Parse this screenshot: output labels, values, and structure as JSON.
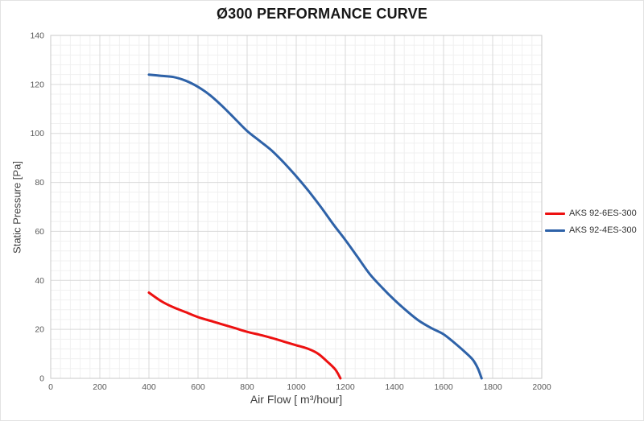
{
  "title": "Ø300 PERFORMANCE CURVE",
  "colors": {
    "red_series": "#ed1111",
    "blue_series": "#2e62a8",
    "grid_major": "#d9d9d9",
    "grid_minor": "#f0f0f0",
    "plot_border": "#c9c9c9",
    "tick_text": "#595959",
    "axis_title_text": "#404040",
    "title_text": "#171717"
  },
  "chart_data": {
    "type": "line",
    "title": "Ø300 PERFORMANCE CURVE",
    "xlabel": "Air Flow [ m³/hour]",
    "ylabel": "Static Pressure [Pa]",
    "xlim": [
      0,
      2000
    ],
    "ylim": [
      0,
      140
    ],
    "x_ticks": [
      0,
      200,
      400,
      600,
      800,
      1000,
      1200,
      1400,
      1600,
      1800,
      2000
    ],
    "y_ticks": [
      0,
      20,
      40,
      60,
      80,
      100,
      120,
      140
    ],
    "x_major_step": 200,
    "x_minor_step": 40,
    "y_major_step": 20,
    "y_minor_step": 4,
    "grid": true,
    "legend_position": "right",
    "series": [
      {
        "name": "AKS 92-6ES-300",
        "color": "#ed1111",
        "points": [
          [
            400,
            35
          ],
          [
            450,
            31.5
          ],
          [
            500,
            29
          ],
          [
            550,
            27
          ],
          [
            600,
            25
          ],
          [
            650,
            23.5
          ],
          [
            700,
            22
          ],
          [
            750,
            20.5
          ],
          [
            800,
            19
          ],
          [
            850,
            17.8
          ],
          [
            900,
            16.5
          ],
          [
            950,
            15
          ],
          [
            1000,
            13.5
          ],
          [
            1050,
            12
          ],
          [
            1090,
            10
          ],
          [
            1130,
            6.5
          ],
          [
            1160,
            3.5
          ],
          [
            1180,
            0
          ]
        ]
      },
      {
        "name": "AKS 92-4ES-300",
        "color": "#2e62a8",
        "points": [
          [
            400,
            124
          ],
          [
            450,
            123.5
          ],
          [
            500,
            123
          ],
          [
            550,
            121.5
          ],
          [
            600,
            119
          ],
          [
            650,
            115.5
          ],
          [
            700,
            111
          ],
          [
            750,
            106
          ],
          [
            800,
            101
          ],
          [
            850,
            97
          ],
          [
            900,
            93
          ],
          [
            950,
            88
          ],
          [
            1000,
            82.5
          ],
          [
            1050,
            76.5
          ],
          [
            1100,
            70
          ],
          [
            1150,
            63
          ],
          [
            1200,
            56.5
          ],
          [
            1250,
            49.5
          ],
          [
            1300,
            42.5
          ],
          [
            1350,
            37
          ],
          [
            1400,
            32
          ],
          [
            1450,
            27.5
          ],
          [
            1500,
            23.5
          ],
          [
            1550,
            20.5
          ],
          [
            1600,
            18
          ],
          [
            1650,
            14
          ],
          [
            1690,
            10.5
          ],
          [
            1720,
            7.5
          ],
          [
            1740,
            4
          ],
          [
            1755,
            0
          ]
        ]
      }
    ]
  }
}
